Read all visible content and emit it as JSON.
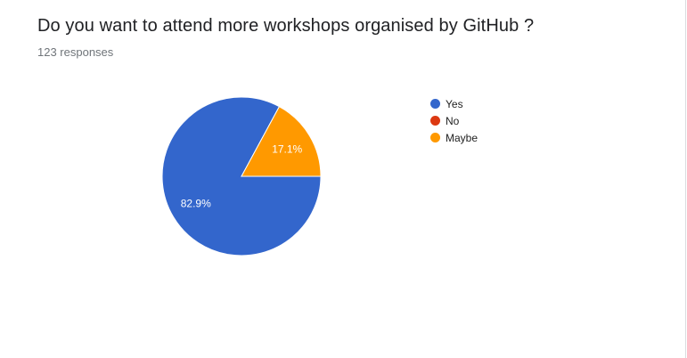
{
  "question": {
    "title": "Do you want to attend more workshops organised by GitHub ?",
    "responses": "123 responses"
  },
  "chart_data": {
    "type": "pie",
    "categories": [
      "Yes",
      "No",
      "Maybe"
    ],
    "values": [
      82.9,
      0,
      17.1
    ],
    "value_labels": [
      "82.9%",
      "",
      "17.1%"
    ],
    "colors": [
      "#3366cc",
      "#dc3912",
      "#ff9900"
    ],
    "total_responses": 123,
    "legend_position": "right"
  }
}
